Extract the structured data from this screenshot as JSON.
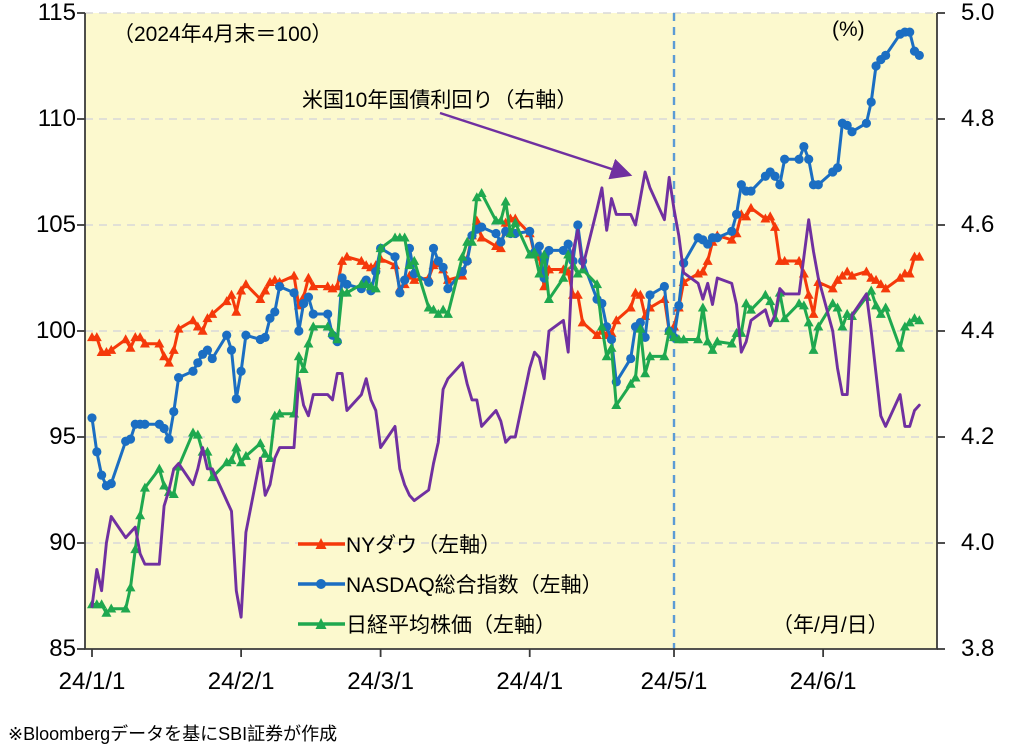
{
  "chart": {
    "note_left": "（2024年4月末＝100）",
    "right_axis_unit": "(%)",
    "x_axis_unit": "（年/月/日）",
    "annotation_label": "米国10年国債利回り（右軸）",
    "legend": [
      {
        "label": "NYダウ（左軸）"
      },
      {
        "label": "NASDAQ総合指数（左軸）"
      },
      {
        "label": "日経平均株価（左軸）"
      }
    ],
    "footer": "※Bloombergデータを基にSBI証券が作成"
  },
  "chart_data": {
    "type": "line",
    "title": "",
    "grid": true,
    "legend_position": "inside-bottom-left",
    "left_axis": {
      "label": "（2024年4月末＝100）",
      "min": 85,
      "max": 115,
      "tick_labels": [
        "85",
        "90",
        "95",
        "100",
        "105",
        "110",
        "115"
      ]
    },
    "right_axis": {
      "label": "(%)",
      "min": 3.8,
      "max": 5.0,
      "tick_labels": [
        "3.8",
        "4.0",
        "4.2",
        "4.4",
        "4.6",
        "4.8",
        "5.0"
      ]
    },
    "x_ticks": [
      {
        "date": "1/1",
        "label": "24/1/1"
      },
      {
        "date": "2/1",
        "label": "24/2/1"
      },
      {
        "date": "3/1",
        "label": "24/3/1"
      },
      {
        "date": "4/1",
        "label": "24/4/1"
      },
      {
        "date": "5/1",
        "label": "24/5/1"
      },
      {
        "date": "6/1",
        "label": "24/6/1"
      }
    ],
    "vline_date": "5/1",
    "dates": [
      "1/1",
      "1/2",
      "1/3",
      "1/4",
      "1/5",
      "1/8",
      "1/9",
      "1/10",
      "1/11",
      "1/12",
      "1/15",
      "1/16",
      "1/17",
      "1/18",
      "1/19",
      "1/22",
      "1/23",
      "1/24",
      "1/25",
      "1/26",
      "1/29",
      "1/30",
      "1/31",
      "2/1",
      "2/2",
      "2/5",
      "2/6",
      "2/7",
      "2/8",
      "2/9",
      "2/12",
      "2/13",
      "2/14",
      "2/15",
      "2/16",
      "2/19",
      "2/20",
      "2/21",
      "2/22",
      "2/23",
      "2/26",
      "2/27",
      "2/28",
      "2/29",
      "3/1",
      "3/4",
      "3/5",
      "3/6",
      "3/7",
      "3/8",
      "3/11",
      "3/12",
      "3/13",
      "3/14",
      "3/15",
      "3/18",
      "3/19",
      "3/20",
      "3/21",
      "3/22",
      "3/25",
      "3/26",
      "3/27",
      "3/28",
      "3/29",
      "4/1",
      "4/2",
      "4/3",
      "4/4",
      "4/5",
      "4/8",
      "4/9",
      "4/10",
      "4/11",
      "4/12",
      "4/15",
      "4/16",
      "4/17",
      "4/18",
      "4/19",
      "4/22",
      "4/23",
      "4/24",
      "4/25",
      "4/26",
      "4/29",
      "4/30",
      "5/1",
      "5/2",
      "5/3",
      "5/6",
      "5/7",
      "5/8",
      "5/9",
      "5/10",
      "5/13",
      "5/14",
      "5/15",
      "5/16",
      "5/17",
      "5/20",
      "5/21",
      "5/22",
      "5/23",
      "5/24",
      "5/27",
      "5/28",
      "5/29",
      "5/30",
      "5/31",
      "6/3",
      "6/4",
      "6/5",
      "6/6",
      "6/7",
      "6/10",
      "6/11",
      "6/12",
      "6/13",
      "6/14",
      "6/17",
      "6/18",
      "6/19",
      "6/20",
      "6/21"
    ],
    "series": [
      {
        "id": "dow",
        "name": "NYダウ（左軸）",
        "axis": "left",
        "color": "#f5390a",
        "marker": "triangle",
        "values": [
          99.7,
          99.7,
          99.0,
          99.0,
          99.1,
          99.6,
          99.2,
          99.7,
          99.7,
          99.4,
          99.4,
          98.8,
          98.5,
          99.1,
          100.1,
          100.5,
          100.2,
          100.0,
          100.6,
          100.8,
          101.4,
          101.7,
          100.9,
          101.9,
          102.2,
          101.5,
          101.9,
          102.3,
          102.4,
          102.3,
          102.6,
          101.2,
          101.6,
          102.5,
          102.1,
          102.1,
          102.0,
          102.1,
          103.3,
          103.5,
          103.3,
          103.1,
          103.0,
          103.1,
          103.4,
          103.1,
          102.0,
          102.2,
          102.6,
          102.4,
          102.5,
          103.1,
          103.2,
          102.9,
          102.4,
          102.6,
          103.4,
          104.5,
          105.2,
          104.4,
          104.0,
          103.9,
          105.1,
          105.3,
          105.3,
          104.6,
          103.6,
          103.5,
          102.1,
          102.9,
          102.9,
          102.8,
          101.7,
          101.7,
          100.4,
          99.8,
          100.0,
          99.8,
          99.9,
          100.5,
          101.1,
          101.8,
          101.7,
          100.7,
          101.1,
          101.5,
          100.0,
          100.2,
          101.1,
          102.3,
          102.7,
          102.8,
          103.3,
          104.2,
          104.5,
          104.3,
          104.6,
          105.5,
          105.4,
          105.8,
          105.3,
          105.4,
          104.9,
          103.3,
          103.3,
          103.3,
          102.7,
          101.7,
          100.8,
          102.3,
          102.0,
          102.4,
          102.6,
          102.8,
          102.6,
          102.8,
          102.5,
          102.4,
          102.2,
          102.0,
          102.5,
          102.7,
          102.7,
          103.5,
          103.5
        ]
      },
      {
        "id": "nasdaq",
        "name": "NASDAQ総合指数（左軸）",
        "axis": "left",
        "color": "#1b6ec2",
        "marker": "circle",
        "values": [
          95.9,
          94.3,
          93.2,
          92.7,
          92.8,
          94.8,
          94.9,
          95.6,
          95.6,
          95.6,
          95.6,
          95.4,
          94.9,
          96.2,
          97.8,
          98.1,
          98.5,
          98.9,
          99.1,
          98.7,
          99.8,
          99.1,
          96.8,
          98.1,
          99.8,
          99.6,
          99.7,
          100.6,
          100.9,
          102.1,
          101.8,
          100.0,
          101.3,
          101.6,
          100.8,
          100.8,
          99.8,
          99.5,
          102.5,
          102.2,
          102.0,
          102.4,
          101.9,
          102.8,
          103.9,
          103.5,
          101.8,
          102.4,
          103.9,
          102.7,
          102.3,
          103.9,
          103.3,
          103.0,
          102.0,
          102.8,
          103.3,
          104.5,
          104.8,
          104.9,
          104.6,
          104.2,
          104.7,
          104.6,
          104.6,
          104.7,
          103.7,
          104.0,
          102.5,
          103.8,
          103.8,
          104.1,
          103.3,
          105.0,
          103.3,
          101.5,
          101.3,
          100.2,
          99.6,
          97.6,
          98.7,
          100.2,
          100.4,
          99.7,
          101.7,
          102.1,
          100.0,
          99.7,
          101.2,
          103.2,
          104.4,
          104.3,
          104.1,
          104.4,
          104.4,
          104.7,
          105.5,
          106.9,
          106.6,
          106.6,
          107.3,
          107.5,
          107.3,
          106.9,
          108.1,
          108.1,
          108.7,
          108.1,
          106.9,
          106.9,
          107.5,
          107.7,
          109.8,
          109.7,
          109.4,
          109.8,
          110.8,
          112.5,
          112.8,
          113.0,
          114.0,
          114.1,
          114.1,
          113.2,
          113.0
        ]
      },
      {
        "id": "nikkei",
        "name": "日経平均株価（左軸）",
        "axis": "left",
        "color": "#1fa84f",
        "marker": "triangle",
        "values": [
          87.1,
          87.1,
          87.1,
          86.7,
          86.9,
          86.9,
          87.9,
          89.7,
          91.3,
          92.6,
          93.5,
          92.7,
          92.4,
          92.3,
          93.6,
          95.2,
          95.1,
          94.3,
          94.3,
          93.1,
          93.8,
          93.9,
          94.5,
          93.8,
          94.1,
          94.7,
          94.2,
          94.0,
          96.0,
          96.1,
          96.1,
          98.8,
          98.2,
          99.4,
          100.2,
          100.2,
          99.9,
          99.6,
          101.8,
          101.8,
          102.2,
          102.2,
          102.1,
          102.0,
          103.9,
          104.4,
          104.4,
          104.4,
          103.1,
          103.3,
          101.1,
          101.0,
          100.8,
          101.0,
          100.8,
          103.5,
          104.2,
          104.2,
          106.3,
          106.5,
          105.2,
          105.2,
          106.1,
          104.6,
          105.1,
          103.6,
          103.7,
          102.7,
          103.6,
          101.5,
          102.5,
          103.6,
          103.1,
          102.7,
          102.9,
          102.2,
          100.2,
          98.8,
          99.2,
          96.5,
          97.5,
          97.8,
          100.1,
          98.0,
          98.8,
          98.8,
          100.0,
          99.7,
          99.6,
          99.6,
          99.6,
          101.1,
          99.5,
          99.1,
          99.5,
          99.4,
          99.9,
          99.9,
          101.3,
          101.0,
          101.7,
          101.4,
          100.6,
          101.8,
          100.6,
          101.3,
          101.2,
          100.4,
          99.1,
          100.2,
          101.3,
          101.1,
          100.2,
          100.8,
          100.7,
          101.6,
          101.9,
          101.2,
          100.8,
          101.1,
          99.2,
          100.2,
          100.4,
          100.6,
          100.5
        ]
      },
      {
        "id": "us10y",
        "name": "米国10年国債利回り（右軸）",
        "axis": "right",
        "color": "#7030a0",
        "marker": "none",
        "values": [
          3.88,
          3.95,
          3.91,
          4.0,
          4.05,
          4.01,
          4.02,
          4.03,
          3.98,
          3.96,
          3.96,
          4.07,
          4.1,
          4.14,
          4.15,
          4.11,
          4.14,
          4.18,
          4.14,
          4.14,
          4.08,
          4.06,
          3.91,
          3.86,
          4.02,
          4.16,
          4.09,
          4.11,
          4.16,
          4.18,
          4.18,
          4.31,
          4.26,
          4.24,
          4.28,
          4.28,
          4.27,
          4.32,
          4.32,
          4.25,
          4.28,
          4.31,
          4.27,
          4.25,
          4.18,
          4.22,
          4.14,
          4.11,
          4.09,
          4.08,
          4.1,
          4.15,
          4.19,
          4.29,
          4.31,
          4.34,
          4.3,
          4.27,
          4.27,
          4.22,
          4.25,
          4.23,
          4.19,
          4.2,
          4.2,
          4.33,
          4.36,
          4.35,
          4.31,
          4.4,
          4.42,
          4.36,
          4.55,
          4.59,
          4.52,
          4.63,
          4.67,
          4.59,
          4.65,
          4.62,
          4.62,
          4.6,
          4.65,
          4.7,
          4.67,
          4.61,
          4.69,
          4.63,
          4.58,
          4.51,
          4.49,
          4.46,
          4.49,
          4.45,
          4.5,
          4.49,
          4.45,
          4.36,
          4.38,
          4.42,
          4.44,
          4.41,
          4.43,
          4.48,
          4.47,
          4.47,
          4.54,
          4.61,
          4.55,
          4.5,
          4.4,
          4.33,
          4.28,
          4.28,
          4.43,
          4.47,
          4.4,
          4.32,
          4.24,
          4.22,
          4.28,
          4.22,
          4.22,
          4.25,
          4.26
        ]
      }
    ],
    "colors": {
      "plot_background": "#fcf9ce",
      "gridline": "#d8d8d8",
      "axis_line": "#3a3a3a",
      "vline": "#5b9bd5",
      "annotation_arrow": "#7030a0"
    }
  }
}
